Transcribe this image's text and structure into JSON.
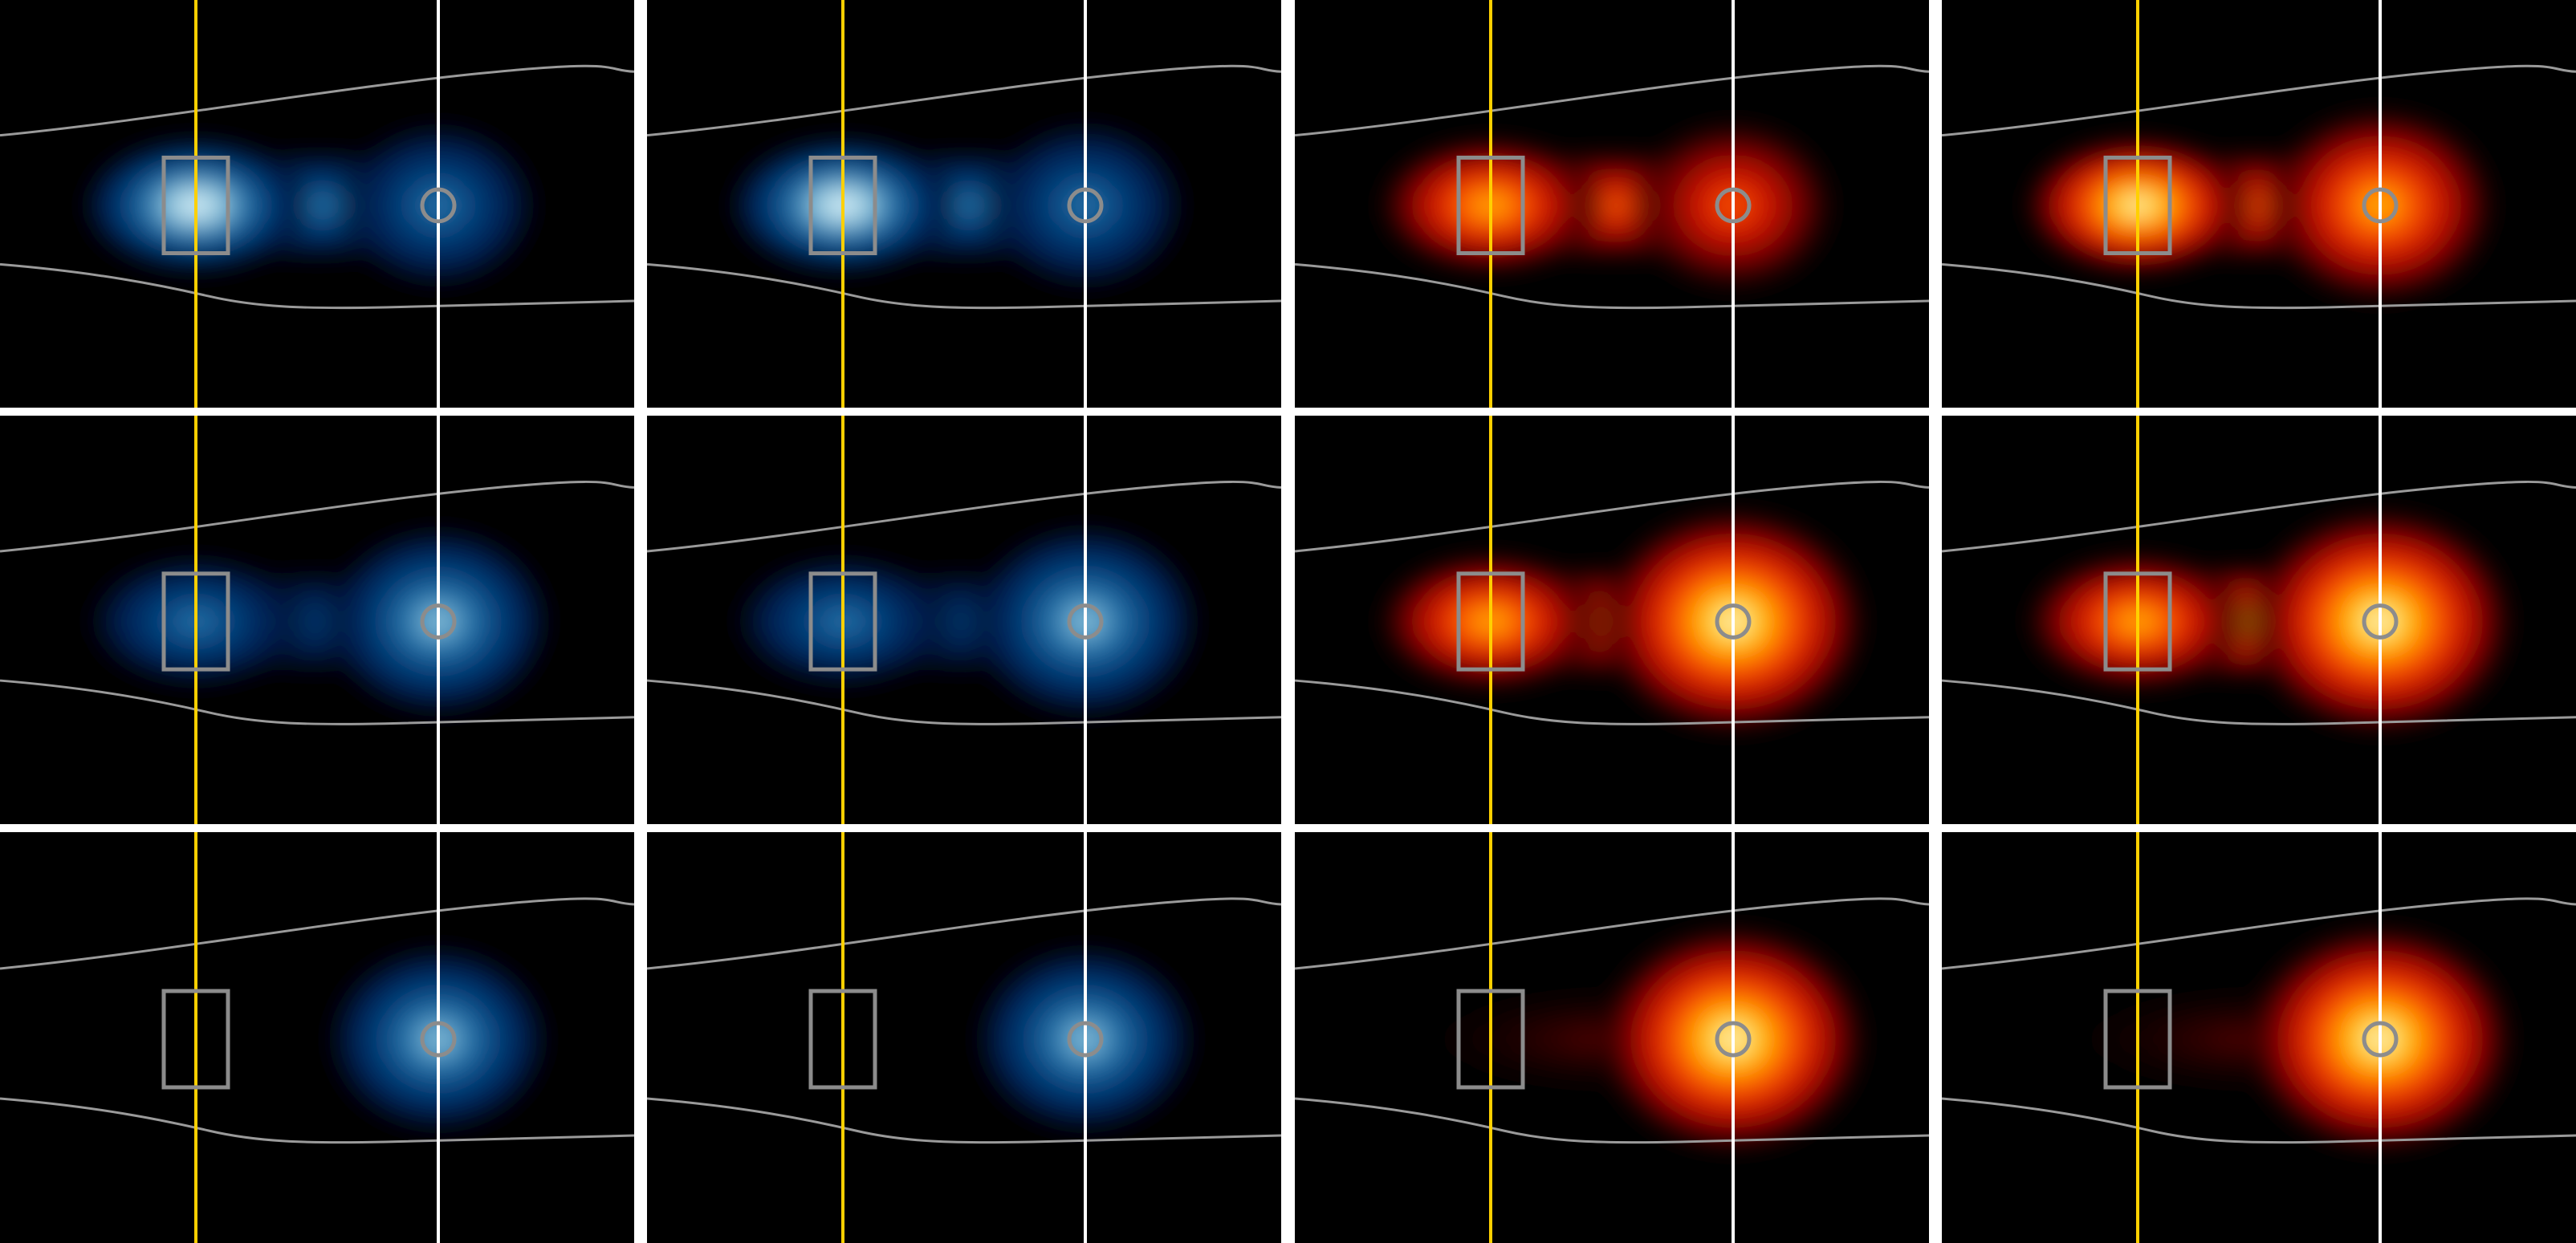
{
  "figure": {
    "rows": 3,
    "columns": 4,
    "background": "#000000",
    "grid_line_color": "#ffffff",
    "outline_color": "#9a9a9a",
    "marker_color": "#8c8c8c",
    "reference_line_left_color": "#ffd000",
    "reference_line_right_color": "#ffffff",
    "colormaps": {
      "blue": [
        "#000000",
        "#001a4a",
        "#053f7a",
        "#2a78ae",
        "#9fd1e4",
        "#eef8fc"
      ],
      "hot": [
        "#000000",
        "#5a0000",
        "#c81000",
        "#ff5a00",
        "#ffc400",
        "#fffce8"
      ]
    },
    "panels": [
      {
        "row": 1,
        "col": 1,
        "colormap": "blue",
        "left_intensity": 1.0,
        "right_intensity": 0.6,
        "band_intensity": 0.55
      },
      {
        "row": 1,
        "col": 2,
        "colormap": "blue",
        "left_intensity": 1.0,
        "right_intensity": 0.62,
        "band_intensity": 0.55
      },
      {
        "row": 1,
        "col": 3,
        "colormap": "hot",
        "left_intensity": 0.72,
        "right_intensity": 0.62,
        "band_intensity": 0.58
      },
      {
        "row": 1,
        "col": 4,
        "colormap": "hot",
        "left_intensity": 0.95,
        "right_intensity": 0.78,
        "band_intensity": 0.62
      },
      {
        "row": 2,
        "col": 1,
        "colormap": "blue",
        "left_intensity": 0.5,
        "right_intensity": 0.75,
        "band_intensity": 0.45
      },
      {
        "row": 2,
        "col": 2,
        "colormap": "blue",
        "left_intensity": 0.5,
        "right_intensity": 0.78,
        "band_intensity": 0.45
      },
      {
        "row": 2,
        "col": 3,
        "colormap": "hot",
        "left_intensity": 0.85,
        "right_intensity": 1.0,
        "band_intensity": 0.6
      },
      {
        "row": 2,
        "col": 4,
        "colormap": "hot",
        "left_intensity": 0.85,
        "right_intensity": 1.0,
        "band_intensity": 0.7
      },
      {
        "row": 3,
        "col": 1,
        "colormap": "blue",
        "left_intensity": 0.0,
        "right_intensity": 0.72,
        "band_intensity": 0.0
      },
      {
        "row": 3,
        "col": 2,
        "colormap": "blue",
        "left_intensity": 0.0,
        "right_intensity": 0.72,
        "band_intensity": 0.0
      },
      {
        "row": 3,
        "col": 3,
        "colormap": "hot",
        "left_intensity": 0.0,
        "right_intensity": 1.0,
        "band_intensity": 0.12
      },
      {
        "row": 3,
        "col": 4,
        "colormap": "hot",
        "left_intensity": 0.0,
        "right_intensity": 1.0,
        "band_intensity": 0.25
      }
    ]
  }
}
